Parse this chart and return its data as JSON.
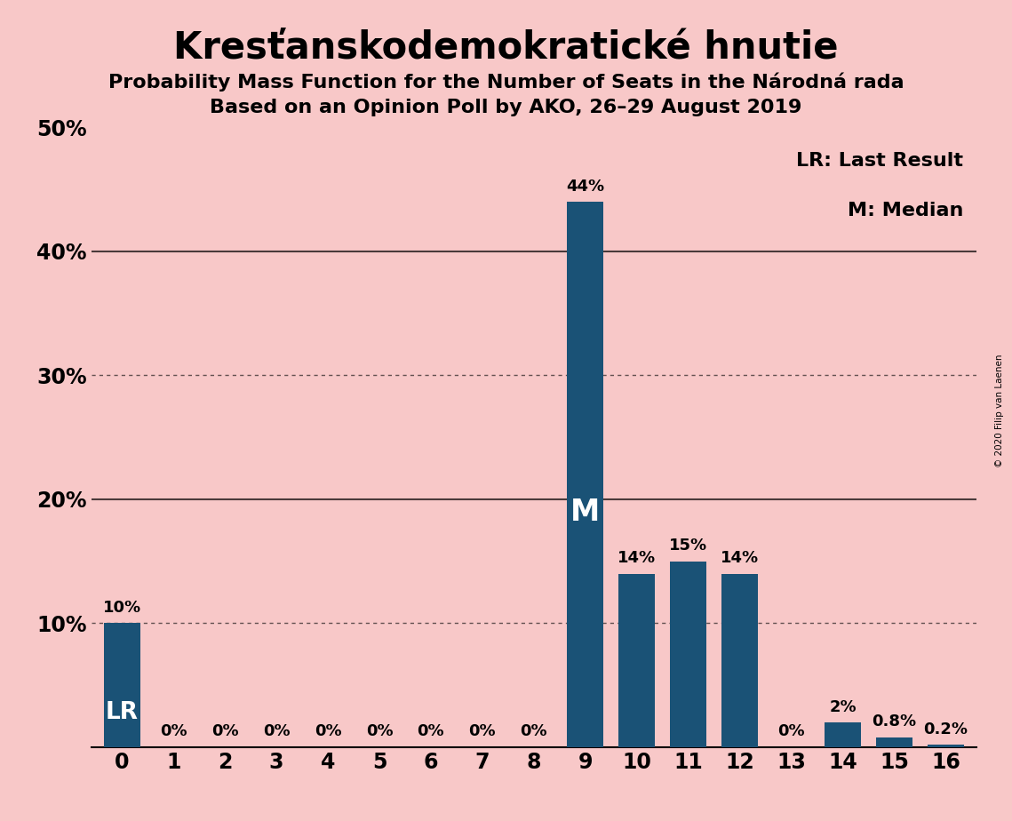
{
  "title": "Kresťanskodemokratické hnutie",
  "subtitle1": "Probability Mass Function for the Number of Seats in the Národná rada",
  "subtitle2": "Based on an Opinion Poll by AKO, 26–29 August 2019",
  "copyright": "© 2020 Filip van Laenen",
  "categories": [
    0,
    1,
    2,
    3,
    4,
    5,
    6,
    7,
    8,
    9,
    10,
    11,
    12,
    13,
    14,
    15,
    16
  ],
  "values": [
    10,
    0,
    0,
    0,
    0,
    0,
    0,
    0,
    0,
    44,
    14,
    15,
    14,
    0,
    2,
    0.8,
    0.2
  ],
  "bar_color": "#1a5276",
  "background_color": "#f8c8c8",
  "lr_seat": 0,
  "median_seat": 9,
  "lr_label": "LR",
  "median_label": "M",
  "ylim": [
    0,
    50
  ],
  "dotted_lines": [
    10,
    30
  ],
  "solid_lines": [
    20,
    40
  ],
  "legend_lr": "LR: Last Result",
  "legend_m": "M: Median",
  "title_fontsize": 30,
  "subtitle_fontsize": 16,
  "bar_label_fontsize": 13,
  "axis_fontsize": 17
}
